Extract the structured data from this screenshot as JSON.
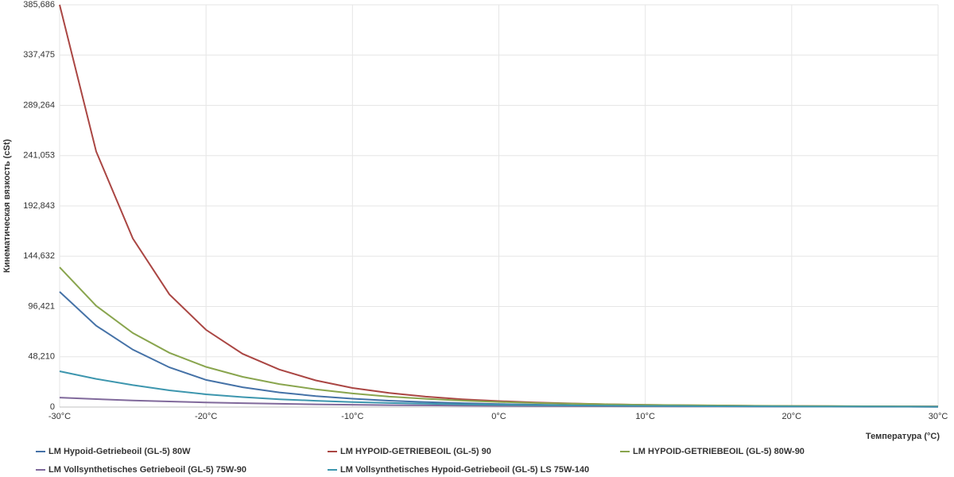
{
  "chart_data": {
    "type": "line",
    "x_label": "Температура (°C)",
    "y_label": "Кинематическая вязкость (cSt)",
    "x": [
      -30,
      -27.5,
      -25,
      -22.5,
      -20,
      -17.5,
      -15,
      -12.5,
      -10,
      -7.5,
      -5,
      -2.5,
      0,
      2.5,
      5,
      7.5,
      10,
      12.5,
      15,
      17.5,
      20,
      22.5,
      25,
      27.5,
      30
    ],
    "xlim": [
      -30,
      30
    ],
    "xticks": [
      {
        "value": -30,
        "label": "-30°C"
      },
      {
        "value": -20,
        "label": "-20°C"
      },
      {
        "value": -10,
        "label": "-10°C"
      },
      {
        "value": 0,
        "label": "0°C"
      },
      {
        "value": 10,
        "label": "10°C"
      },
      {
        "value": 20,
        "label": "20°C"
      },
      {
        "value": 30,
        "label": "30°C"
      }
    ],
    "ylim": [
      0,
      385686
    ],
    "yticks": [
      0,
      {
        "value": 48210,
        "label": "48,210"
      },
      {
        "value": 96421,
        "label": "96,421"
      },
      {
        "value": 144632,
        "label": "144,632"
      },
      {
        "value": 192843,
        "label": "192,843"
      },
      {
        "value": 241053,
        "label": "241,053"
      },
      {
        "value": 289264,
        "label": "289,264"
      },
      {
        "value": 337475,
        "label": "337,475"
      },
      {
        "value": 385686,
        "label": "385,686"
      }
    ],
    "grid": true,
    "legend": "bottom",
    "series": [
      {
        "name": "LM Hypoid-Getriebeoil (GL-5) 80W",
        "color": "#4572a7",
        "values": [
          110500,
          78000,
          55000,
          38000,
          26000,
          19000,
          14000,
          10500,
          8000,
          6100,
          4700,
          3700,
          2900,
          2300,
          1850,
          1500,
          1220,
          1000,
          830,
          690,
          580,
          490,
          420,
          360,
          310
        ]
      },
      {
        "name": "LM HYPOID-GETRIEBEOIL (GL-5) 90",
        "color": "#aa4643",
        "values": [
          385686,
          245000,
          161600,
          108000,
          74000,
          51000,
          36000,
          25500,
          18300,
          13500,
          10000,
          7500,
          5700,
          4400,
          3400,
          2700,
          2150,
          1750,
          1420,
          1170,
          970,
          810,
          680,
          580,
          500
        ]
      },
      {
        "name": "LM HYPOID-GETRIEBEOIL (GL-5) 80W-90",
        "color": "#89a54e",
        "values": [
          134000,
          97000,
          71000,
          52000,
          38500,
          29000,
          22000,
          17000,
          13000,
          10000,
          7900,
          6200,
          4900,
          3900,
          3200,
          2600,
          2150,
          1800,
          1500,
          1250,
          1050,
          900,
          780,
          670,
          580
        ]
      },
      {
        "name": "LM Vollsynthetisches Getriebeoil (GL-5) 75W-90",
        "color": "#80699b",
        "values": [
          9100,
          7600,
          6300,
          5300,
          4400,
          3700,
          3100,
          2600,
          2200,
          1850,
          1580,
          1350,
          1150,
          990,
          860,
          750,
          650,
          570,
          500,
          440,
          390,
          345,
          305,
          270,
          240
        ]
      },
      {
        "name": "LM Vollsynthetisches Hypoid-Getriebeoil (GL-5) LS 75W-140",
        "color": "#3d96ae",
        "values": [
          34300,
          27000,
          21000,
          16000,
          12200,
          9500,
          7500,
          6000,
          4800,
          3900,
          3200,
          2600,
          2150,
          1800,
          1500,
          1260,
          1060,
          900,
          770,
          660,
          570,
          490,
          430,
          370,
          330
        ]
      }
    ]
  }
}
